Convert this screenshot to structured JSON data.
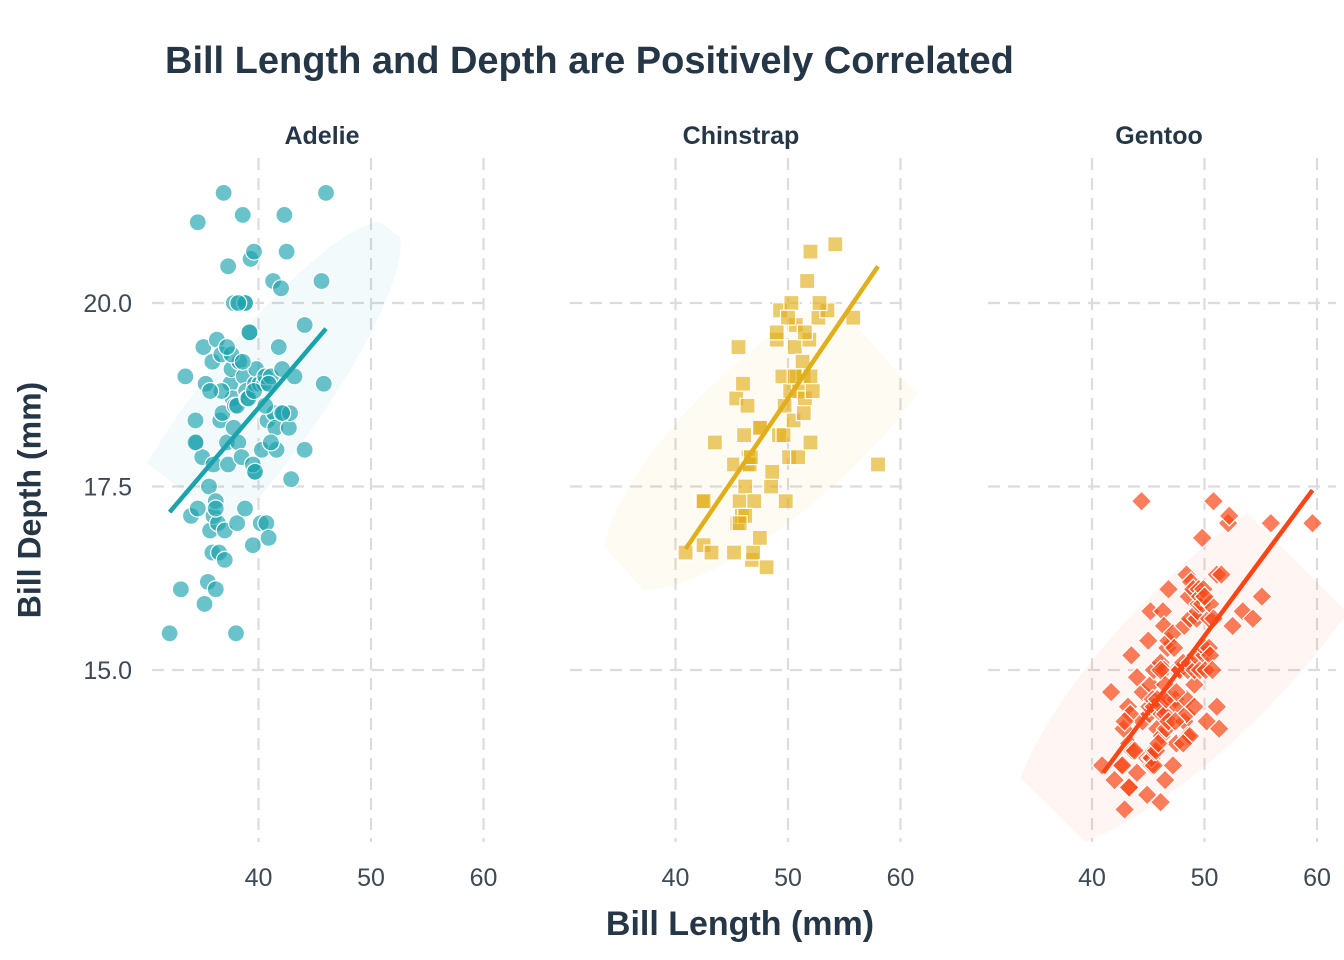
{
  "chart_data": {
    "type": "scatter",
    "title": "Bill Length and Depth are Positively Correlated",
    "xlabel": "Bill Length (mm)",
    "ylabel": "Bill Depth (mm)",
    "x_ticks": [
      40,
      50,
      60
    ],
    "y_ticks": [
      15.0,
      17.5,
      20.0
    ],
    "y_tick_labels": [
      "15.0",
      "17.5",
      "20.0"
    ],
    "grid": true,
    "facets": [
      {
        "name": "Adelie",
        "color": "#1aa3ad",
        "marker": "circle",
        "trend": {
          "x": [
            32.1,
            46.0
          ],
          "y": [
            17.15,
            19.65
          ]
        },
        "ellipse": {
          "center": [
            38.9,
            18.4
          ],
          "x_extent": [
            30.6,
            47.3
          ],
          "y_extent": [
            15.1,
            21.9
          ],
          "tilt": "positive"
        },
        "points": [
          [
            32.1,
            15.5
          ],
          [
            33.1,
            16.1
          ],
          [
            33.5,
            19.0
          ],
          [
            34.0,
            17.1
          ],
          [
            34.4,
            18.4
          ],
          [
            34.5,
            18.1
          ],
          [
            34.6,
            21.1
          ],
          [
            34.6,
            17.2
          ],
          [
            35.0,
            17.9
          ],
          [
            35.1,
            19.4
          ],
          [
            35.2,
            15.9
          ],
          [
            35.3,
            18.9
          ],
          [
            35.5,
            16.2
          ],
          [
            35.6,
            17.5
          ],
          [
            35.7,
            16.9
          ],
          [
            35.9,
            19.2
          ],
          [
            35.9,
            16.6
          ],
          [
            36.0,
            17.1
          ],
          [
            36.0,
            17.8
          ],
          [
            36.2,
            16.1
          ],
          [
            36.2,
            17.3
          ],
          [
            36.3,
            19.5
          ],
          [
            36.4,
            17.0
          ],
          [
            36.5,
            16.6
          ],
          [
            36.6,
            18.4
          ],
          [
            36.7,
            19.3
          ],
          [
            36.8,
            18.5
          ],
          [
            36.9,
            21.5
          ],
          [
            37.0,
            16.9
          ],
          [
            37.2,
            18.1
          ],
          [
            37.3,
            20.5
          ],
          [
            37.3,
            17.8
          ],
          [
            37.5,
            18.9
          ],
          [
            37.6,
            19.1
          ],
          [
            37.7,
            18.7
          ],
          [
            37.8,
            18.3
          ],
          [
            37.8,
            20.0
          ],
          [
            37.9,
            18.6
          ],
          [
            38.0,
            15.5
          ],
          [
            38.1,
            18.6
          ],
          [
            38.1,
            17.0
          ],
          [
            38.2,
            18.1
          ],
          [
            38.3,
            19.2
          ],
          [
            38.5,
            17.9
          ],
          [
            38.6,
            21.2
          ],
          [
            38.7,
            19.0
          ],
          [
            38.8,
            17.2
          ],
          [
            38.9,
            18.8
          ],
          [
            39.0,
            18.7
          ],
          [
            39.1,
            18.7
          ],
          [
            39.2,
            19.6
          ],
          [
            39.3,
            20.6
          ],
          [
            39.5,
            16.7
          ],
          [
            39.6,
            17.7
          ],
          [
            39.7,
            18.9
          ],
          [
            39.8,
            19.1
          ],
          [
            40.1,
            18.9
          ],
          [
            40.2,
            17.0
          ],
          [
            40.3,
            18.0
          ],
          [
            40.5,
            18.9
          ],
          [
            40.6,
            19.0
          ],
          [
            40.7,
            17.0
          ],
          [
            40.8,
            18.4
          ],
          [
            40.9,
            16.8
          ],
          [
            41.1,
            19.0
          ],
          [
            41.3,
            20.3
          ],
          [
            41.4,
            18.5
          ],
          [
            41.5,
            18.3
          ],
          [
            41.6,
            18.0
          ],
          [
            41.8,
            19.4
          ],
          [
            42.0,
            20.2
          ],
          [
            42.1,
            19.1
          ],
          [
            42.2,
            18.5
          ],
          [
            42.3,
            21.2
          ],
          [
            42.5,
            20.7
          ],
          [
            42.7,
            18.3
          ],
          [
            42.8,
            18.5
          ],
          [
            42.9,
            17.6
          ],
          [
            43.2,
            19.0
          ],
          [
            44.1,
            19.7
          ],
          [
            44.1,
            18.0
          ],
          [
            45.6,
            20.3
          ],
          [
            45.8,
            18.9
          ],
          [
            46.0,
            21.5
          ],
          [
            39.6,
            20.7
          ],
          [
            37.6,
            19.3
          ],
          [
            38.9,
            20.0
          ],
          [
            39.5,
            17.8
          ],
          [
            40.6,
            18.6
          ],
          [
            36.7,
            18.8
          ],
          [
            38.8,
            20.0
          ],
          [
            35.7,
            18.8
          ],
          [
            39.2,
            19.6
          ],
          [
            38.6,
            19.2
          ],
          [
            34.4,
            18.1
          ],
          [
            37.2,
            19.4
          ],
          [
            39.6,
            18.8
          ],
          [
            41.1,
            18.1
          ],
          [
            37.0,
            16.5
          ],
          [
            38.2,
            20.0
          ],
          [
            40.9,
            18.9
          ],
          [
            36.2,
            17.2
          ],
          [
            42.1,
            18.5
          ],
          [
            39.7,
            17.7
          ]
        ]
      },
      {
        "name": "Chinstrap",
        "color": "#e2af1c",
        "marker": "square",
        "trend": {
          "x": [
            40.9,
            58.0
          ],
          "y": [
            16.65,
            20.5
          ]
        },
        "ellipse": {
          "center": [
            49.4,
            18.3
          ],
          "x_extent": [
            38.6,
            61.0
          ],
          "y_extent": [
            15.5,
            21.3
          ],
          "tilt": "positive"
        },
        "points": [
          [
            40.9,
            16.6
          ],
          [
            42.4,
            17.3
          ],
          [
            42.5,
            16.7
          ],
          [
            42.5,
            17.3
          ],
          [
            43.2,
            16.6
          ],
          [
            43.5,
            18.1
          ],
          [
            45.2,
            16.6
          ],
          [
            45.2,
            17.8
          ],
          [
            45.4,
            18.7
          ],
          [
            45.5,
            17.0
          ],
          [
            45.6,
            19.4
          ],
          [
            45.7,
            17.3
          ],
          [
            45.9,
            17.1
          ],
          [
            46.0,
            18.9
          ],
          [
            46.1,
            18.2
          ],
          [
            46.2,
            17.5
          ],
          [
            46.4,
            18.6
          ],
          [
            46.4,
            17.8
          ],
          [
            46.5,
            17.9
          ],
          [
            46.6,
            17.8
          ],
          [
            46.7,
            17.9
          ],
          [
            46.8,
            16.5
          ],
          [
            46.9,
            16.6
          ],
          [
            47.0,
            17.3
          ],
          [
            47.5,
            16.8
          ],
          [
            47.6,
            18.3
          ],
          [
            48.1,
            16.4
          ],
          [
            48.5,
            17.5
          ],
          [
            49.0,
            19.5
          ],
          [
            49.2,
            18.2
          ],
          [
            49.3,
            19.9
          ],
          [
            49.5,
            19.0
          ],
          [
            49.6,
            18.2
          ],
          [
            49.7,
            18.6
          ],
          [
            50.1,
            17.9
          ],
          [
            50.2,
            18.8
          ],
          [
            50.3,
            20.0
          ],
          [
            50.5,
            18.4
          ],
          [
            50.6,
            19.4
          ],
          [
            50.7,
            19.7
          ],
          [
            50.8,
            19.0
          ],
          [
            51.0,
            18.8
          ],
          [
            51.3,
            19.2
          ],
          [
            51.4,
            19.0
          ],
          [
            51.5,
            18.7
          ],
          [
            51.7,
            20.3
          ],
          [
            51.9,
            19.5
          ],
          [
            52.0,
            19.0
          ],
          [
            52.2,
            18.8
          ],
          [
            52.7,
            19.8
          ],
          [
            53.5,
            19.9
          ],
          [
            54.2,
            20.8
          ],
          [
            55.8,
            19.8
          ],
          [
            58.0,
            17.8
          ],
          [
            46.2,
            17.1
          ],
          [
            50.9,
            17.9
          ],
          [
            52.8,
            20.0
          ],
          [
            47.5,
            18.3
          ],
          [
            48.6,
            17.7
          ],
          [
            50.0,
            19.8
          ],
          [
            49.8,
            17.3
          ],
          [
            52.0,
            18.1
          ],
          [
            51.4,
            18.5
          ],
          [
            50.6,
            19.0
          ],
          [
            45.7,
            17.0
          ],
          [
            51.5,
            19.6
          ],
          [
            49.0,
            19.6
          ],
          [
            52.0,
            20.7
          ]
        ]
      },
      {
        "name": "Gentoo",
        "color": "#fa4616",
        "marker": "diamond",
        "trend": {
          "x": [
            41.0,
            59.6
          ],
          "y": [
            13.6,
            17.45
          ]
        },
        "ellipse": {
          "center": [
            50.1,
            15.2
          ],
          "x_extent": [
            38.7,
            62.0
          ],
          "y_extent": [
            12.1,
            19.0
          ],
          "tilt": "positive"
        },
        "points": [
          [
            40.9,
            13.7
          ],
          [
            41.7,
            14.7
          ],
          [
            42.0,
            13.5
          ],
          [
            42.6,
            13.7
          ],
          [
            42.7,
            13.7
          ],
          [
            42.8,
            14.2
          ],
          [
            42.9,
            13.1
          ],
          [
            43.2,
            14.5
          ],
          [
            43.3,
            13.4
          ],
          [
            43.3,
            14.0
          ],
          [
            43.4,
            14.4
          ],
          [
            43.5,
            15.2
          ],
          [
            43.6,
            13.9
          ],
          [
            43.8,
            13.9
          ],
          [
            44.0,
            13.6
          ],
          [
            44.4,
            17.3
          ],
          [
            44.5,
            14.3
          ],
          [
            44.5,
            14.7
          ],
          [
            44.9,
            13.3
          ],
          [
            44.9,
            13.8
          ],
          [
            45.0,
            15.4
          ],
          [
            45.1,
            14.4
          ],
          [
            45.1,
            14.5
          ],
          [
            45.2,
            13.8
          ],
          [
            45.2,
            14.8
          ],
          [
            45.2,
            15.8
          ],
          [
            45.3,
            13.7
          ],
          [
            45.3,
            13.8
          ],
          [
            45.4,
            14.6
          ],
          [
            45.5,
            13.7
          ],
          [
            45.5,
            13.9
          ],
          [
            45.5,
            14.5
          ],
          [
            45.5,
            15.0
          ],
          [
            45.7,
            13.9
          ],
          [
            45.8,
            14.2
          ],
          [
            45.8,
            14.6
          ],
          [
            46.1,
            13.2
          ],
          [
            46.1,
            15.1
          ],
          [
            46.2,
            14.1
          ],
          [
            46.2,
            14.4
          ],
          [
            46.2,
            14.5
          ],
          [
            46.3,
            15.8
          ],
          [
            46.4,
            15.0
          ],
          [
            46.4,
            15.6
          ],
          [
            46.5,
            13.5
          ],
          [
            46.5,
            14.4
          ],
          [
            46.5,
            14.8
          ],
          [
            46.6,
            14.2
          ],
          [
            46.7,
            15.3
          ],
          [
            46.8,
            14.3
          ],
          [
            46.8,
            15.4
          ],
          [
            46.8,
            16.1
          ],
          [
            46.9,
            14.6
          ],
          [
            47.2,
            13.7
          ],
          [
            47.2,
            15.5
          ],
          [
            47.3,
            15.3
          ],
          [
            47.4,
            14.6
          ],
          [
            47.5,
            14.0
          ],
          [
            47.5,
            15.0
          ],
          [
            47.6,
            14.5
          ],
          [
            47.7,
            15.0
          ],
          [
            47.8,
            15.0
          ],
          [
            48.1,
            15.1
          ],
          [
            48.2,
            14.3
          ],
          [
            48.2,
            15.6
          ],
          [
            48.4,
            14.4
          ],
          [
            48.4,
            14.6
          ],
          [
            48.4,
            16.3
          ],
          [
            48.5,
            14.1
          ],
          [
            48.5,
            15.0
          ],
          [
            48.6,
            16.0
          ],
          [
            48.7,
            14.1
          ],
          [
            48.7,
            15.1
          ],
          [
            48.7,
            15.7
          ],
          [
            48.8,
            16.2
          ],
          [
            49.0,
            16.1
          ],
          [
            49.1,
            14.5
          ],
          [
            49.1,
            14.8
          ],
          [
            49.1,
            15.0
          ],
          [
            49.2,
            15.2
          ],
          [
            49.3,
            15.7
          ],
          [
            49.4,
            15.8
          ],
          [
            49.5,
            15.9
          ],
          [
            49.5,
            16.1
          ],
          [
            49.6,
            15.0
          ],
          [
            49.6,
            16.0
          ],
          [
            49.8,
            15.9
          ],
          [
            49.8,
            16.8
          ],
          [
            49.9,
            16.1
          ],
          [
            50.0,
            15.2
          ],
          [
            50.0,
            15.3
          ],
          [
            50.1,
            15.0
          ],
          [
            50.2,
            14.3
          ],
          [
            50.4,
            15.3
          ],
          [
            50.4,
            15.7
          ],
          [
            50.5,
            15.2
          ],
          [
            50.5,
            15.9
          ],
          [
            50.7,
            15.0
          ],
          [
            50.8,
            15.7
          ],
          [
            50.8,
            17.3
          ],
          [
            51.1,
            14.5
          ],
          [
            51.1,
            16.3
          ],
          [
            51.3,
            14.2
          ],
          [
            51.5,
            16.3
          ],
          [
            52.1,
            17.0
          ],
          [
            52.2,
            17.1
          ],
          [
            52.5,
            15.6
          ],
          [
            53.4,
            15.8
          ],
          [
            54.3,
            15.7
          ],
          [
            55.1,
            16.0
          ],
          [
            55.9,
            17.0
          ],
          [
            59.6,
            17.0
          ],
          [
            47.4,
            14.3
          ],
          [
            44.0,
            14.9
          ],
          [
            48.1,
            14.0
          ],
          [
            46.6,
            14.6
          ],
          [
            45.9,
            14.0
          ],
          [
            50.0,
            16.0
          ],
          [
            43.3,
            13.4
          ],
          [
            47.5,
            14.7
          ],
          [
            42.9,
            14.3
          ],
          [
            46.1,
            15.0
          ]
        ]
      }
    ]
  }
}
